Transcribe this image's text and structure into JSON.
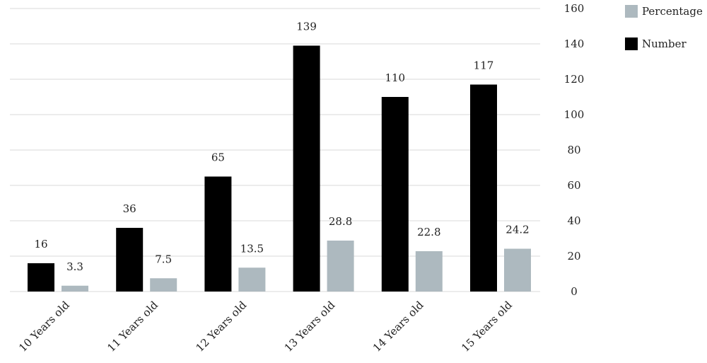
{
  "chart_data": {
    "type": "bar",
    "categories": [
      "10 Years old",
      "11 Years old",
      "12 Years old",
      "13 Years old",
      "14 Years old",
      "15 Years old"
    ],
    "series": [
      {
        "name": "Number",
        "values": [
          16,
          36,
          65,
          139,
          110,
          117
        ],
        "color": "#000000"
      },
      {
        "name": "Percentage",
        "values": [
          3.3,
          7.5,
          13.5,
          28.8,
          22.8,
          24.2
        ],
        "color": "#adb9bf"
      }
    ],
    "y_ticks": [
      0,
      20,
      40,
      60,
      80,
      100,
      120,
      140,
      160
    ],
    "ylim": [
      0,
      160
    ],
    "y_axis_side": "right",
    "grid": true,
    "legend_position": "top-right",
    "data_labels": true
  },
  "legend": {
    "items": [
      {
        "label": "Percentage",
        "color": "#adb9bf"
      },
      {
        "label": "Number",
        "color": "#000000"
      }
    ]
  }
}
